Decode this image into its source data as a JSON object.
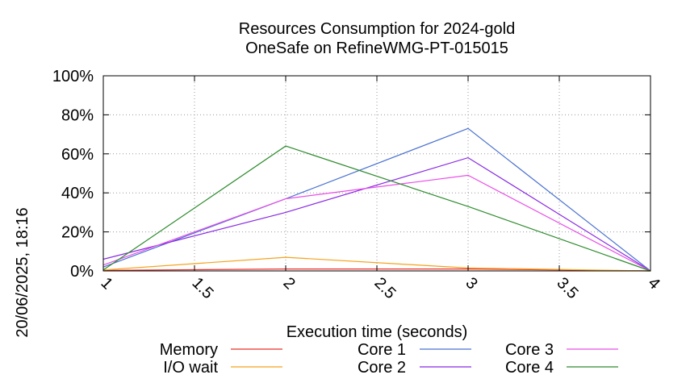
{
  "timestamp": "20/06/2025, 18:16",
  "chart_data": {
    "type": "line",
    "title": "Resources Consumption for 2024-gold",
    "subtitle": "OneSafe on RefineWMG-PT-015015",
    "xlabel": "Execution time (seconds)",
    "ylabel": "",
    "x": [
      1,
      2,
      3,
      4
    ],
    "xlim": [
      1,
      4
    ],
    "ylim": [
      0,
      100
    ],
    "x_ticks": [
      "1",
      "1.5",
      "2",
      "2.5",
      "3",
      "3.5",
      "4"
    ],
    "y_ticks": [
      "0%",
      "20%",
      "40%",
      "60%",
      "80%",
      "100%"
    ],
    "grid": true,
    "legend_position": "bottom",
    "series": [
      {
        "name": "Memory",
        "color": "#e8302a",
        "values": [
          0.3,
          1,
          1,
          0
        ]
      },
      {
        "name": "I/O wait",
        "color": "#f5a21b",
        "values": [
          0.5,
          7,
          1.5,
          0
        ]
      },
      {
        "name": "Core 1",
        "color": "#4a72d1",
        "values": [
          2,
          37,
          73,
          0
        ]
      },
      {
        "name": "Core 2",
        "color": "#8a2be2",
        "values": [
          6,
          30,
          58,
          0
        ]
      },
      {
        "name": "Core 3",
        "color": "#e84fe8",
        "values": [
          3,
          37,
          49,
          0
        ]
      },
      {
        "name": "Core 4",
        "color": "#2e8b2e",
        "values": [
          0.5,
          64,
          33,
          0
        ]
      }
    ]
  }
}
